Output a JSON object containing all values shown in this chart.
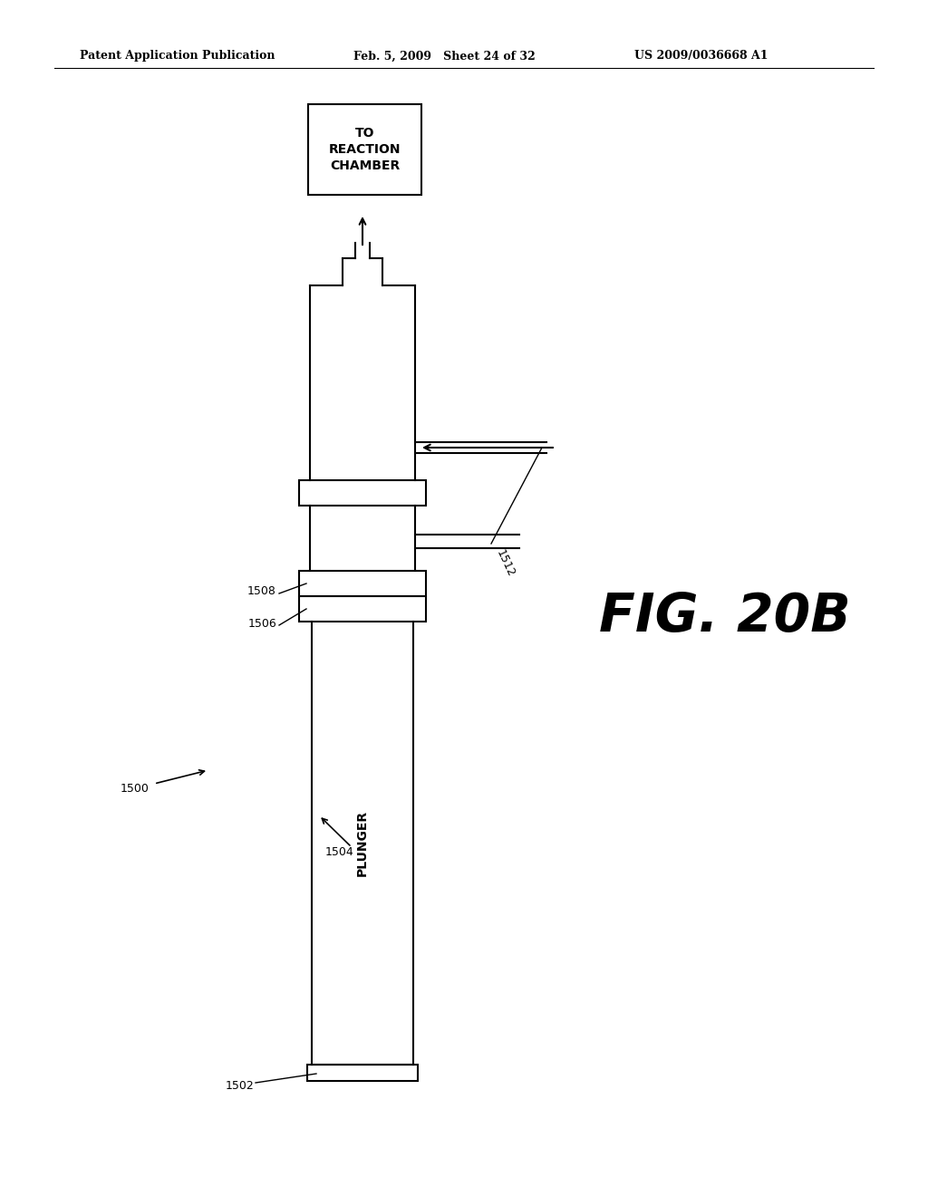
{
  "bg_color": "#ffffff",
  "line_color": "#000000",
  "header_left": "Patent Application Publication",
  "header_mid": "Feb. 5, 2009   Sheet 24 of 32",
  "header_right": "US 2009/0036668 A1",
  "fig_label": "FIG. 20B",
  "reaction_box_text": "TO\nREACTION\nCHAMBER",
  "plunger_text": "PLUNGER",
  "label_1500": "1500",
  "label_1502": "1502",
  "label_1504": "1504",
  "label_1506": "1506",
  "label_1508": "1508",
  "label_1512": "1512"
}
